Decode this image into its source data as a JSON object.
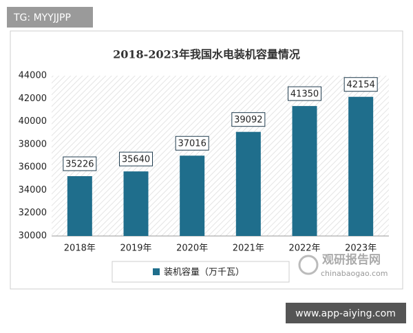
{
  "chart_data": {
    "type": "bar",
    "title": "2018-2023年我国水电装机容量情况",
    "categories": [
      "2018年",
      "2019年",
      "2020年",
      "2021年",
      "2022年",
      "2023年"
    ],
    "series": [
      {
        "name": "装机容量（万千瓦）",
        "color": "#1f6e8c",
        "values": [
          35226,
          35640,
          37016,
          39092,
          41350,
          42154
        ]
      }
    ],
    "ylim": [
      30000,
      44000
    ],
    "yticks": [
      30000,
      32000,
      34000,
      36000,
      38000,
      40000,
      42000,
      44000
    ],
    "grid": false,
    "data_labels": true
  },
  "overlay": {
    "tag": "TG: MYYJJPP",
    "site": "www.app-aiying.com",
    "logo": "观研报告网",
    "logo_url": "chinabaogao.com"
  }
}
